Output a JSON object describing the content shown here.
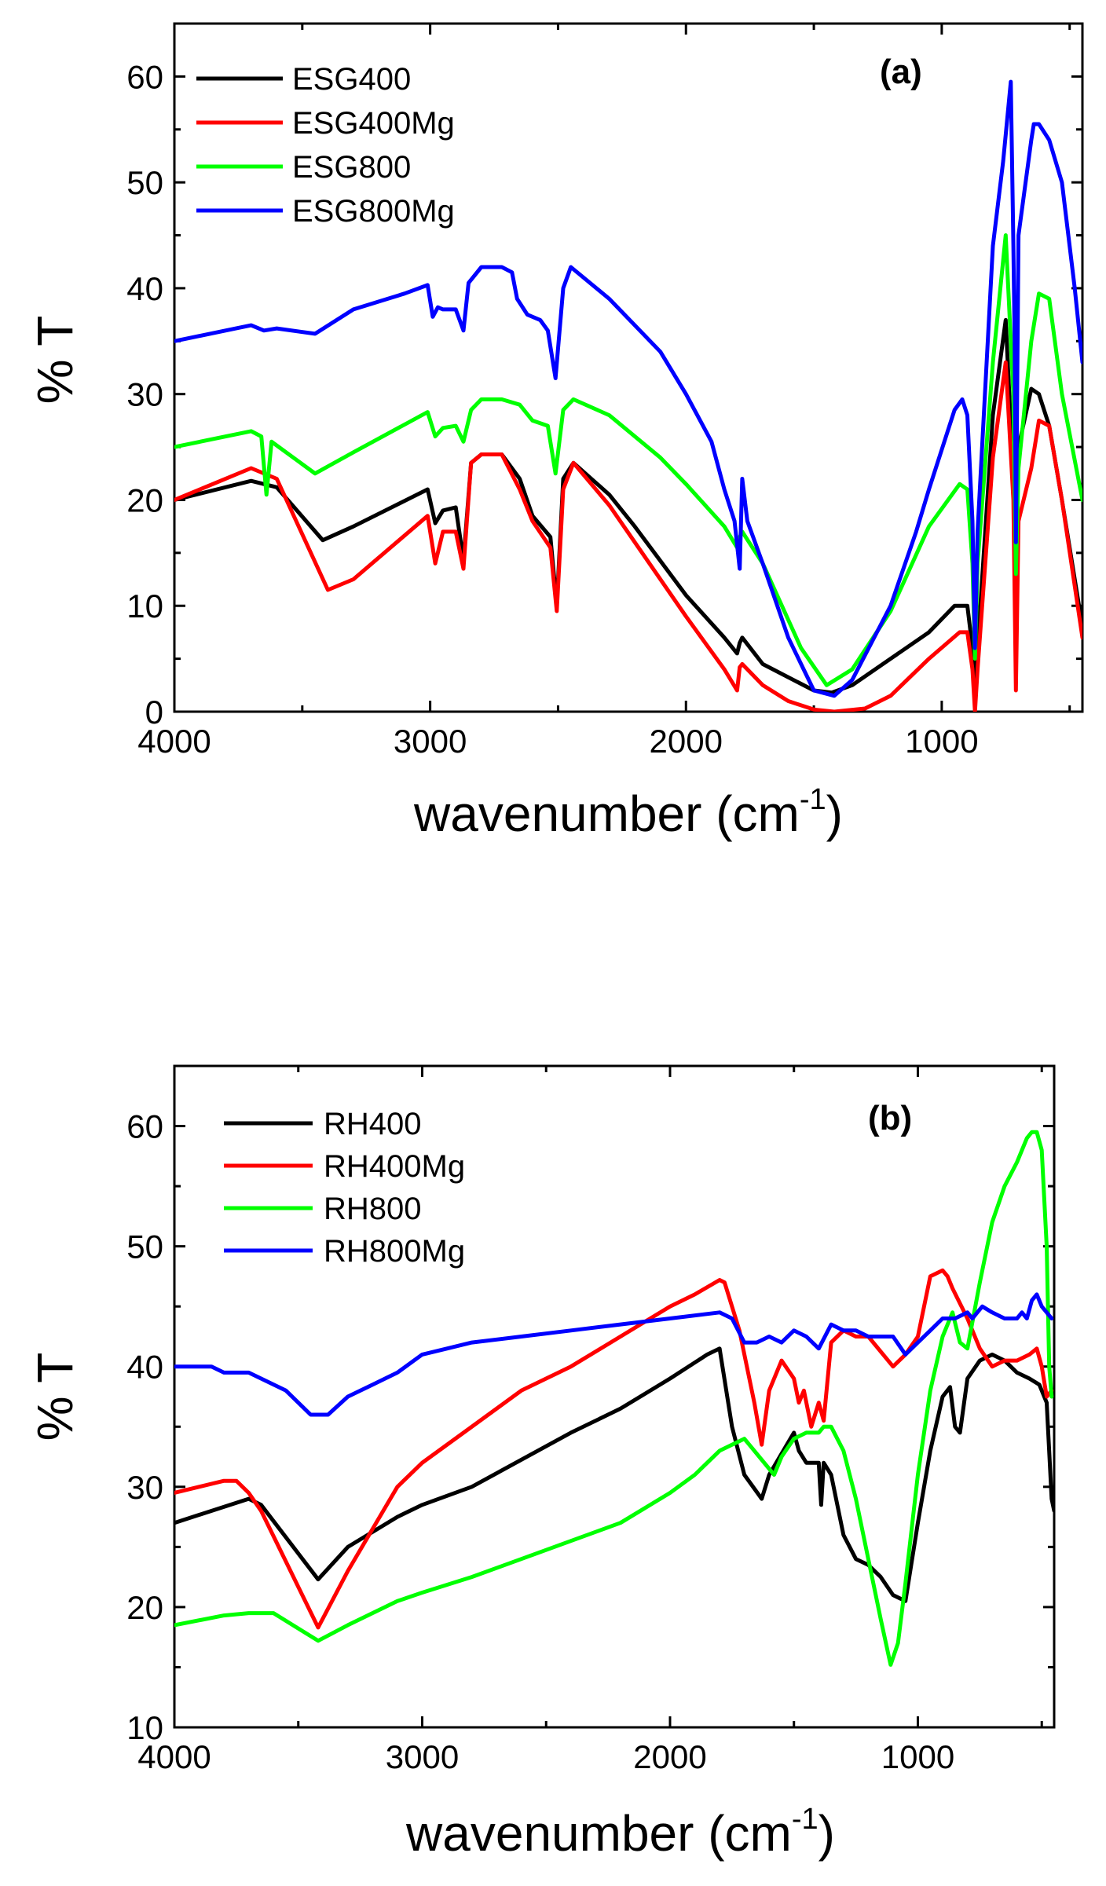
{
  "chart_data": [
    {
      "type": "line",
      "panel_label": "(a)",
      "xlabel": "wavenumber (cm",
      "xlabel_sup": "-1",
      "xlabel_close": ")",
      "ylabel": "% T",
      "xlim": [
        4000,
        450
      ],
      "ylim": [
        0,
        65
      ],
      "xticks": [
        4000,
        3000,
        2000,
        1000
      ],
      "yticks": [
        0,
        10,
        20,
        30,
        40,
        50,
        60
      ],
      "legend_position": "top-left",
      "series": [
        {
          "name": "ESG400",
          "color": "#000000",
          "x": [
            4000,
            3700,
            3600,
            3420,
            3300,
            3010,
            2980,
            2950,
            2900,
            2870,
            2840,
            2800,
            2720,
            2650,
            2600,
            2530,
            2505,
            2480,
            2440,
            2300,
            2200,
            2000,
            1850,
            1800,
            1790,
            1780,
            1700,
            1500,
            1430,
            1350,
            1200,
            1050,
            950,
            900,
            880,
            870,
            860,
            800,
            750,
            720,
            700,
            650,
            620,
            580,
            530,
            450
          ],
          "values": [
            20,
            21.8,
            21.2,
            16.2,
            17.5,
            21,
            17.8,
            19,
            19.3,
            14.3,
            23.5,
            24.3,
            24.3,
            22,
            18.5,
            16.5,
            10,
            22,
            23.5,
            20.5,
            17.5,
            11,
            7,
            5.5,
            6.5,
            7,
            4.5,
            2,
            1.8,
            2.5,
            5,
            7.5,
            10,
            10,
            6,
            2,
            6,
            28,
            37,
            22,
            25,
            30.5,
            30,
            27,
            20,
            8
          ]
        },
        {
          "name": "ESG400Mg",
          "color": "#ff0000",
          "x": [
            4000,
            3700,
            3600,
            3400,
            3300,
            3010,
            2980,
            2950,
            2900,
            2870,
            2840,
            2800,
            2720,
            2650,
            2600,
            2530,
            2505,
            2480,
            2440,
            2300,
            2000,
            1850,
            1800,
            1790,
            1780,
            1700,
            1600,
            1500,
            1420,
            1300,
            1200,
            1050,
            930,
            900,
            880,
            870,
            860,
            800,
            750,
            720,
            710,
            700,
            650,
            620,
            580,
            530,
            450
          ],
          "values": [
            20,
            23,
            22,
            11.5,
            12.5,
            18.5,
            14,
            17,
            17,
            13.5,
            23.5,
            24.3,
            24.3,
            21,
            18,
            15.5,
            9.5,
            21,
            23.5,
            19.5,
            9,
            4,
            2,
            4.2,
            4.5,
            2.5,
            1,
            0.2,
            0,
            0.3,
            1.5,
            5,
            7.5,
            7.5,
            4,
            0,
            4,
            24,
            33,
            20,
            2,
            18,
            23,
            27.5,
            27,
            20,
            7
          ]
        },
        {
          "name": "ESG800",
          "color": "#00ff00",
          "x": [
            4000,
            3700,
            3660,
            3640,
            3620,
            3450,
            3300,
            3010,
            2980,
            2950,
            2900,
            2870,
            2840,
            2800,
            2720,
            2650,
            2600,
            2540,
            2510,
            2480,
            2440,
            2300,
            2100,
            2000,
            1850,
            1800,
            1790,
            1780,
            1700,
            1550,
            1450,
            1350,
            1200,
            1050,
            930,
            900,
            880,
            870,
            860,
            800,
            750,
            720,
            710,
            700,
            650,
            620,
            580,
            530,
            450
          ],
          "values": [
            25,
            26.5,
            26,
            20.5,
            25.5,
            22.5,
            24.5,
            28.3,
            26,
            26.8,
            27,
            25.5,
            28.5,
            29.5,
            29.5,
            29,
            27.5,
            27,
            22.5,
            28.5,
            29.5,
            28,
            24,
            21.5,
            17.5,
            15.5,
            16.5,
            17,
            14,
            6,
            2.5,
            4,
            9.5,
            17.5,
            21.5,
            21,
            14,
            5,
            14,
            33,
            45,
            30,
            13,
            23,
            35,
            39.5,
            39,
            30,
            20
          ]
        },
        {
          "name": "ESG800Mg",
          "color": "#0000ff",
          "x": [
            4000,
            3800,
            3700,
            3650,
            3600,
            3450,
            3300,
            3100,
            3010,
            2990,
            2970,
            2950,
            2900,
            2870,
            2850,
            2800,
            2720,
            2680,
            2660,
            2620,
            2570,
            2540,
            2510,
            2480,
            2450,
            2300,
            2100,
            2000,
            1900,
            1850,
            1810,
            1790,
            1780,
            1760,
            1700,
            1600,
            1500,
            1420,
            1350,
            1200,
            1100,
            1050,
            950,
            920,
            900,
            880,
            870,
            860,
            800,
            760,
            730,
            720,
            715,
            710,
            700,
            650,
            640,
            620,
            580,
            530,
            480,
            450
          ],
          "values": [
            35,
            36,
            36.5,
            36,
            36.2,
            35.7,
            38,
            39.5,
            40.3,
            37.3,
            38.2,
            38,
            38,
            36,
            40.5,
            42,
            42,
            41.5,
            39,
            37.5,
            37,
            36,
            31.5,
            40,
            42,
            39,
            34,
            30,
            25.5,
            21,
            18,
            13.5,
            22,
            18,
            14,
            7,
            2,
            1.5,
            3,
            10,
            17,
            21,
            28.5,
            29.5,
            28,
            18,
            6,
            17,
            44,
            52,
            59.5,
            44,
            35,
            16,
            45,
            54,
            55.5,
            55.5,
            54,
            50,
            40,
            33
          ]
        }
      ]
    },
    {
      "type": "line",
      "panel_label": "(b)",
      "xlabel": "wavenumber (cm",
      "xlabel_sup": "-1",
      "xlabel_close": ")",
      "ylabel": "% T",
      "xlim": [
        4000,
        450
      ],
      "ylim": [
        10,
        65
      ],
      "xticks": [
        4000,
        3000,
        2000,
        1000
      ],
      "yticks": [
        10,
        20,
        30,
        40,
        50,
        60
      ],
      "legend_position": "top-left",
      "series": [
        {
          "name": "RH400",
          "color": "#000000",
          "x": [
            4000,
            3700,
            3650,
            3420,
            3300,
            3100,
            3000,
            2800,
            2400,
            2200,
            2000,
            1850,
            1800,
            1750,
            1700,
            1630,
            1600,
            1500,
            1480,
            1450,
            1400,
            1390,
            1380,
            1350,
            1300,
            1250,
            1200,
            1150,
            1100,
            1050,
            1000,
            950,
            900,
            870,
            850,
            830,
            800,
            750,
            700,
            650,
            600,
            550,
            510,
            480,
            460,
            450
          ],
          "values": [
            27,
            29,
            28.5,
            22.3,
            25,
            27.5,
            28.5,
            30,
            34.5,
            36.5,
            39,
            41,
            41.5,
            35,
            31,
            29,
            31,
            34.5,
            33,
            32,
            32,
            28.5,
            32,
            31,
            26,
            24,
            23.5,
            22.5,
            21,
            20.5,
            27,
            33,
            37.5,
            38.3,
            35,
            34.5,
            39,
            40.5,
            41,
            40.5,
            39.5,
            39,
            38.5,
            37,
            29,
            28
          ]
        },
        {
          "name": "RH400Mg",
          "color": "#ff0000",
          "x": [
            4000,
            3900,
            3800,
            3750,
            3700,
            3650,
            3420,
            3300,
            3100,
            3000,
            2800,
            2600,
            2400,
            2200,
            2000,
            1900,
            1800,
            1780,
            1720,
            1660,
            1630,
            1600,
            1550,
            1500,
            1480,
            1460,
            1430,
            1400,
            1380,
            1350,
            1300,
            1250,
            1200,
            1100,
            1050,
            1000,
            950,
            900,
            880,
            860,
            800,
            750,
            700,
            650,
            600,
            550,
            520,
            500,
            480,
            460
          ],
          "values": [
            29.5,
            30,
            30.5,
            30.5,
            29.5,
            28,
            18.3,
            23,
            30,
            32,
            35,
            38,
            40,
            42.5,
            45,
            46,
            47.2,
            47,
            43,
            37,
            33.5,
            38,
            40.5,
            39,
            37,
            38,
            35,
            37,
            35.5,
            42,
            43,
            42.5,
            42.5,
            40,
            41,
            42.5,
            47.5,
            48,
            47.5,
            46.5,
            44,
            41.5,
            40,
            40.5,
            40.5,
            41,
            41.5,
            40,
            37.5,
            38
          ]
        },
        {
          "name": "RH800",
          "color": "#00ff00",
          "x": [
            4000,
            3800,
            3700,
            3600,
            3420,
            3300,
            3100,
            3000,
            2800,
            2600,
            2400,
            2200,
            2000,
            1900,
            1800,
            1700,
            1680,
            1600,
            1580,
            1550,
            1500,
            1450,
            1400,
            1380,
            1350,
            1300,
            1250,
            1200,
            1150,
            1110,
            1080,
            1050,
            1000,
            950,
            900,
            860,
            830,
            800,
            750,
            700,
            650,
            600,
            560,
            540,
            520,
            500,
            480,
            470,
            460
          ],
          "values": [
            18.5,
            19.3,
            19.5,
            19.5,
            17.2,
            18.5,
            20.5,
            21.2,
            22.5,
            24,
            25.5,
            27,
            29.5,
            31,
            33,
            34,
            33.5,
            31.5,
            31,
            32.5,
            34,
            34.5,
            34.5,
            35,
            35,
            33,
            29,
            24,
            19,
            15.2,
            17,
            22,
            31,
            38,
            42.5,
            44.5,
            42,
            41.5,
            47,
            52,
            55,
            57,
            59,
            59.5,
            59.5,
            58,
            50,
            40,
            37.5
          ]
        },
        {
          "name": "RH800Mg",
          "color": "#0000ff",
          "x": [
            4000,
            3850,
            3800,
            3750,
            3700,
            3650,
            3550,
            3450,
            3380,
            3300,
            3200,
            3100,
            3000,
            2900,
            2800,
            2600,
            2400,
            2200,
            2000,
            1800,
            1750,
            1700,
            1650,
            1600,
            1550,
            1500,
            1450,
            1400,
            1350,
            1300,
            1250,
            1200,
            1150,
            1100,
            1050,
            1000,
            950,
            900,
            850,
            800,
            780,
            760,
            740,
            700,
            650,
            600,
            580,
            560,
            540,
            520,
            500,
            480,
            460
          ],
          "values": [
            40,
            40,
            39.5,
            39.5,
            39.5,
            39,
            38,
            36,
            36,
            37.5,
            38.5,
            39.5,
            41,
            41.5,
            42,
            42.5,
            43,
            43.5,
            44,
            44.5,
            44,
            42,
            42,
            42.5,
            42,
            43,
            42.5,
            41.5,
            43.5,
            43,
            43,
            42.5,
            42.5,
            42.5,
            41,
            42,
            43,
            44,
            44,
            44.5,
            44,
            44.5,
            45,
            44.5,
            44,
            44,
            44.5,
            44,
            45.5,
            46,
            45,
            44.5,
            44
          ]
        }
      ]
    }
  ]
}
